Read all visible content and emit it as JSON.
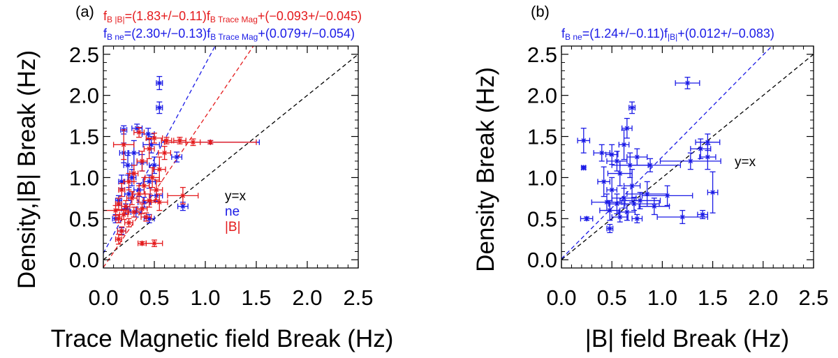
{
  "chart_data": [
    {
      "type": "scatter",
      "panel_label": "(a)",
      "xlabel": "Trace Magnetic field Break (Hz)",
      "ylabel": "Density,|B| Break (Hz)",
      "xlim": [
        0.0,
        2.5
      ],
      "ylim": [
        -0.1,
        2.6
      ],
      "xticks": [
        "0.0",
        "0.5",
        "1.0",
        "1.5",
        "2.0",
        "2.5"
      ],
      "yticks": [
        "0.0",
        "0.5",
        "1.0",
        "1.5",
        "2.0",
        "2.5"
      ],
      "equations": [
        {
          "lhs": "f",
          "lhs_sub": "B |B|",
          "mid": "=(1.83+/−0.11)f",
          "mid_sub": "B Trace Mag",
          "rhs": "+(−0.093+/−0.045)",
          "color": "#e41a1c"
        },
        {
          "lhs": "f",
          "lhs_sub": "B ne",
          "mid": "=(2.30+/−0.13)f",
          "mid_sub": "B Trace Mag",
          "rhs": "+(0.079+/−0.054)",
          "color": "#1a1ae6"
        }
      ],
      "legend": [
        {
          "label": "y=x",
          "color": "#000000"
        },
        {
          "label": "ne",
          "color": "#1a1ae6"
        },
        {
          "label": "|B|",
          "color": "#e41a1c"
        }
      ],
      "lines": [
        {
          "name": "y=x",
          "slope": 1.0,
          "intercept": 0.0,
          "color": "#000000"
        },
        {
          "name": "ne fit",
          "slope": 2.3,
          "intercept": 0.079,
          "color": "#1a1ae6"
        },
        {
          "name": "|B| fit",
          "slope": 1.83,
          "intercept": -0.093,
          "color": "#e41a1c"
        }
      ],
      "series": [
        {
          "name": "ne",
          "color": "#1a1ae6",
          "points": [
            {
              "x": 0.55,
              "y": 2.15,
              "xerr": 0.03,
              "yerr": 0.08
            },
            {
              "x": 0.55,
              "y": 1.85,
              "xerr": 0.03,
              "yerr": 0.07
            },
            {
              "x": 0.33,
              "y": 1.6,
              "xerr": 0.05,
              "yerr": 0.05
            },
            {
              "x": 0.2,
              "y": 1.58,
              "xerr": 0.03,
              "yerr": 0.05
            },
            {
              "x": 0.44,
              "y": 1.53,
              "xerr": 0.06,
              "yerr": 0.07
            },
            {
              "x": 0.47,
              "y": 1.4,
              "xerr": 0.08,
              "yerr": 0.1
            },
            {
              "x": 0.3,
              "y": 1.3,
              "xerr": 0.05,
              "yerr": 0.15
            },
            {
              "x": 0.2,
              "y": 1.3,
              "xerr": 0.04,
              "yerr": 0.12
            },
            {
              "x": 0.38,
              "y": 1.18,
              "xerr": 0.05,
              "yerr": 0.1
            },
            {
              "x": 0.24,
              "y": 1.15,
              "xerr": 0.04,
              "yerr": 0.12
            },
            {
              "x": 0.5,
              "y": 1.15,
              "xerr": 0.05,
              "yerr": 0.1
            },
            {
              "x": 0.72,
              "y": 1.25,
              "xerr": 0.05,
              "yerr": 0.06
            },
            {
              "x": 0.28,
              "y": 1.0,
              "xerr": 0.04,
              "yerr": 0.1
            },
            {
              "x": 0.18,
              "y": 0.95,
              "xerr": 0.03,
              "yerr": 0.08
            },
            {
              "x": 0.45,
              "y": 0.95,
              "xerr": 0.06,
              "yerr": 0.08
            },
            {
              "x": 0.35,
              "y": 0.85,
              "xerr": 0.05,
              "yerr": 0.08
            },
            {
              "x": 0.25,
              "y": 0.8,
              "xerr": 0.04,
              "yerr": 0.08
            },
            {
              "x": 0.52,
              "y": 0.78,
              "xerr": 0.06,
              "yerr": 0.07
            },
            {
              "x": 0.15,
              "y": 0.72,
              "xerr": 0.03,
              "yerr": 0.06
            },
            {
              "x": 0.4,
              "y": 0.7,
              "xerr": 0.06,
              "yerr": 0.06
            },
            {
              "x": 0.22,
              "y": 0.62,
              "xerr": 0.04,
              "yerr": 0.06
            },
            {
              "x": 0.32,
              "y": 0.58,
              "xerr": 0.05,
              "yerr": 0.06
            },
            {
              "x": 0.78,
              "y": 0.65,
              "xerr": 0.05,
              "yerr": 0.05
            },
            {
              "x": 0.12,
              "y": 0.5,
              "xerr": 0.03,
              "yerr": 0.05
            },
            {
              "x": 0.45,
              "y": 0.5,
              "xerr": 0.05,
              "yerr": 0.05
            },
            {
              "x": 0.18,
              "y": 0.35,
              "xerr": 0.04,
              "yerr": 0.04
            },
            {
              "x": 1.05,
              "y": 1.43,
              "xerr": 0.48,
              "yerr": 0.02
            }
          ]
        },
        {
          "name": "|B|",
          "color": "#e41a1c",
          "points": [
            {
              "x": 0.35,
              "y": 1.55,
              "xerr": 0.05,
              "yerr": 0.06
            },
            {
              "x": 0.5,
              "y": 1.48,
              "xerr": 0.08,
              "yerr": 0.06
            },
            {
              "x": 0.62,
              "y": 1.45,
              "xerr": 0.05,
              "yerr": 0.04
            },
            {
              "x": 0.75,
              "y": 1.45,
              "xerr": 0.06,
              "yerr": 0.04
            },
            {
              "x": 0.88,
              "y": 1.43,
              "xerr": 0.07,
              "yerr": 0.04
            },
            {
              "x": 0.2,
              "y": 1.4,
              "xerr": 0.1,
              "yerr": 0.18
            },
            {
              "x": 0.45,
              "y": 1.35,
              "xerr": 0.05,
              "yerr": 0.12
            },
            {
              "x": 0.6,
              "y": 1.3,
              "xerr": 0.06,
              "yerr": 0.08
            },
            {
              "x": 0.38,
              "y": 1.2,
              "xerr": 0.05,
              "yerr": 0.12
            },
            {
              "x": 0.55,
              "y": 1.1,
              "xerr": 0.06,
              "yerr": 0.15
            },
            {
              "x": 0.3,
              "y": 1.05,
              "xerr": 0.04,
              "yerr": 0.1
            },
            {
              "x": 0.48,
              "y": 1.0,
              "xerr": 0.07,
              "yerr": 0.12
            },
            {
              "x": 0.25,
              "y": 0.95,
              "xerr": 0.05,
              "yerr": 0.1
            },
            {
              "x": 0.4,
              "y": 0.9,
              "xerr": 0.05,
              "yerr": 0.1
            },
            {
              "x": 0.52,
              "y": 0.85,
              "xerr": 0.06,
              "yerr": 0.12
            },
            {
              "x": 0.18,
              "y": 0.85,
              "xerr": 0.03,
              "yerr": 0.08
            },
            {
              "x": 0.35,
              "y": 0.8,
              "xerr": 0.06,
              "yerr": 0.1
            },
            {
              "x": 0.78,
              "y": 0.78,
              "xerr": 0.15,
              "yerr": 0.1
            },
            {
              "x": 0.28,
              "y": 0.75,
              "xerr": 0.05,
              "yerr": 0.08
            },
            {
              "x": 0.45,
              "y": 0.72,
              "xerr": 0.06,
              "yerr": 0.08
            },
            {
              "x": 0.55,
              "y": 0.7,
              "xerr": 0.08,
              "yerr": 0.1
            },
            {
              "x": 0.15,
              "y": 0.68,
              "xerr": 0.03,
              "yerr": 0.07
            },
            {
              "x": 0.22,
              "y": 0.65,
              "xerr": 0.04,
              "yerr": 0.07
            },
            {
              "x": 0.38,
              "y": 0.62,
              "xerr": 0.05,
              "yerr": 0.06
            },
            {
              "x": 0.12,
              "y": 0.6,
              "xerr": 0.12,
              "yerr": 0.06
            },
            {
              "x": 0.3,
              "y": 0.58,
              "xerr": 0.05,
              "yerr": 0.06
            },
            {
              "x": 0.2,
              "y": 0.55,
              "xerr": 0.04,
              "yerr": 0.06
            },
            {
              "x": 0.42,
              "y": 0.52,
              "xerr": 0.05,
              "yerr": 0.05
            },
            {
              "x": 0.15,
              "y": 0.5,
              "xerr": 0.03,
              "yerr": 0.05
            },
            {
              "x": 0.25,
              "y": 0.45,
              "xerr": 0.04,
              "yerr": 0.05
            },
            {
              "x": 0.18,
              "y": 0.35,
              "xerr": 0.04,
              "yerr": 0.05
            },
            {
              "x": 0.15,
              "y": 0.25,
              "xerr": 0.03,
              "yerr": 0.06
            },
            {
              "x": 0.38,
              "y": 0.2,
              "xerr": 0.04,
              "yerr": 0.02
            },
            {
              "x": 0.5,
              "y": 0.2,
              "xerr": 0.08,
              "yerr": 0.04
            },
            {
              "x": 1.05,
              "y": 1.43,
              "xerr": 0.45,
              "yerr": 0.02
            }
          ]
        }
      ]
    },
    {
      "type": "scatter",
      "panel_label": "(b)",
      "xlabel": "|B| field Break (Hz)",
      "ylabel": "Density Break (Hz)",
      "xlim": [
        0.0,
        2.5
      ],
      "ylim": [
        -0.1,
        2.6
      ],
      "xticks": [
        "0.0",
        "0.5",
        "1.0",
        "1.5",
        "2.0",
        "2.5"
      ],
      "yticks": [
        "0.0",
        "0.5",
        "1.0",
        "1.5",
        "2.0",
        "2.5"
      ],
      "equations": [
        {
          "lhs": "f",
          "lhs_sub": "B ne",
          "mid": "=(1.24+/−0.11)f",
          "mid_sub": "|B|",
          "rhs": "+(0.012+/−0.083)",
          "color": "#1a1ae6"
        }
      ],
      "legend": [
        {
          "label": "y=x",
          "color": "#000000"
        }
      ],
      "lines": [
        {
          "name": "y=x",
          "slope": 1.0,
          "intercept": 0.0,
          "color": "#000000"
        },
        {
          "name": "ne vs |B| fit",
          "slope": 1.24,
          "intercept": 0.012,
          "color": "#1a1ae6"
        }
      ],
      "series": [
        {
          "name": "ne vs |B|",
          "color": "#1a1ae6",
          "points": [
            {
              "x": 1.25,
              "y": 2.15,
              "xerr": 0.12,
              "yerr": 0.07
            },
            {
              "x": 0.7,
              "y": 1.85,
              "xerr": 0.03,
              "yerr": 0.07
            },
            {
              "x": 0.65,
              "y": 1.6,
              "xerr": 0.05,
              "yerr": 0.12
            },
            {
              "x": 0.22,
              "y": 1.45,
              "xerr": 0.06,
              "yerr": 0.15
            },
            {
              "x": 1.45,
              "y": 1.43,
              "xerr": 0.12,
              "yerr": 0.1
            },
            {
              "x": 0.62,
              "y": 1.4,
              "xerr": 0.05,
              "yerr": 0.18
            },
            {
              "x": 1.38,
              "y": 1.35,
              "xerr": 0.1,
              "yerr": 0.12
            },
            {
              "x": 0.4,
              "y": 1.3,
              "xerr": 0.08,
              "yerr": 0.1
            },
            {
              "x": 0.5,
              "y": 1.28,
              "xerr": 0.06,
              "yerr": 0.12
            },
            {
              "x": 0.75,
              "y": 1.25,
              "xerr": 0.1,
              "yerr": 0.1
            },
            {
              "x": 1.45,
              "y": 1.25,
              "xerr": 0.08,
              "yerr": 0.15
            },
            {
              "x": 1.28,
              "y": 1.2,
              "xerr": 0.3,
              "yerr": 0.1
            },
            {
              "x": 0.55,
              "y": 1.2,
              "xerr": 0.1,
              "yerr": 0.12
            },
            {
              "x": 0.68,
              "y": 1.15,
              "xerr": 0.18,
              "yerr": 0.15
            },
            {
              "x": 0.88,
              "y": 1.15,
              "xerr": 0.3,
              "yerr": 0.08
            },
            {
              "x": 0.22,
              "y": 1.12,
              "xerr": 0.02,
              "yerr": 0.02
            },
            {
              "x": 0.58,
              "y": 1.05,
              "xerr": 0.12,
              "yerr": 0.15
            },
            {
              "x": 0.42,
              "y": 0.95,
              "xerr": 0.06,
              "yerr": 0.18
            },
            {
              "x": 0.7,
              "y": 0.9,
              "xerr": 0.08,
              "yerr": 0.2
            },
            {
              "x": 0.5,
              "y": 0.85,
              "xerr": 0.05,
              "yerr": 0.15
            },
            {
              "x": 1.5,
              "y": 0.82,
              "xerr": 0.05,
              "yerr": 0.25
            },
            {
              "x": 0.85,
              "y": 0.8,
              "xerr": 0.2,
              "yerr": 0.15
            },
            {
              "x": 1.05,
              "y": 0.78,
              "xerr": 0.25,
              "yerr": 0.12
            },
            {
              "x": 0.62,
              "y": 0.75,
              "xerr": 0.12,
              "yerr": 0.12
            },
            {
              "x": 0.78,
              "y": 0.72,
              "xerr": 0.2,
              "yerr": 0.1
            },
            {
              "x": 0.45,
              "y": 0.7,
              "xerr": 0.15,
              "yerr": 0.1
            },
            {
              "x": 0.55,
              "y": 0.68,
              "xerr": 0.08,
              "yerr": 0.12
            },
            {
              "x": 0.72,
              "y": 0.68,
              "xerr": 0.25,
              "yerr": 0.08
            },
            {
              "x": 0.92,
              "y": 0.65,
              "xerr": 0.15,
              "yerr": 0.1
            },
            {
              "x": 0.48,
              "y": 0.6,
              "xerr": 0.1,
              "yerr": 0.12
            },
            {
              "x": 0.65,
              "y": 0.58,
              "xerr": 0.08,
              "yerr": 0.1
            },
            {
              "x": 1.4,
              "y": 0.55,
              "xerr": 0.05,
              "yerr": 0.05
            },
            {
              "x": 1.2,
              "y": 0.52,
              "xerr": 0.25,
              "yerr": 0.08
            },
            {
              "x": 0.58,
              "y": 0.52,
              "xerr": 0.08,
              "yerr": 0.06
            },
            {
              "x": 0.75,
              "y": 0.5,
              "xerr": 0.05,
              "yerr": 0.05
            },
            {
              "x": 0.25,
              "y": 0.5,
              "xerr": 0.06,
              "yerr": 0.02
            },
            {
              "x": 0.48,
              "y": 0.38,
              "xerr": 0.03,
              "yerr": 0.05
            }
          ]
        }
      ]
    }
  ]
}
